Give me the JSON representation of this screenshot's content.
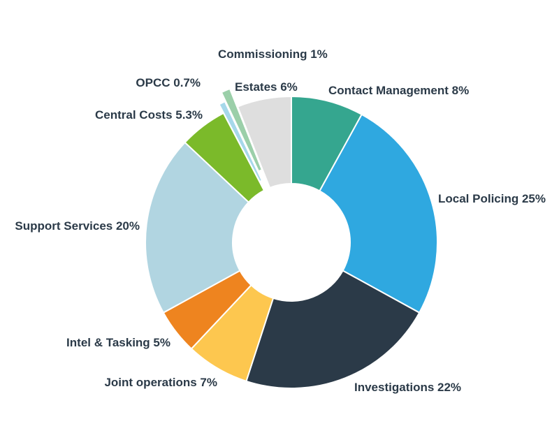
{
  "chart_data": {
    "type": "pie",
    "donut": true,
    "title": "",
    "slices": [
      {
        "label": "Contact Management 8%",
        "value": 8,
        "color": "#35a68f"
      },
      {
        "label": "Local Policing 25%",
        "value": 25,
        "color": "#2fa8e0"
      },
      {
        "label": "Investigations 22%",
        "value": 22,
        "color": "#2b3a48"
      },
      {
        "label": "Joint operations 7%",
        "value": 7,
        "color": "#fdc74f"
      },
      {
        "label": "Intel & Tasking 5%",
        "value": 5,
        "color": "#ee841f"
      },
      {
        "label": "Support Services 20%",
        "value": 20,
        "color": "#b1d5e1"
      },
      {
        "label": "Central Costs 5.3%",
        "value": 5.3,
        "color": "#7bba2a"
      },
      {
        "label": "OPCC 0.7%",
        "value": 0.7,
        "color": "#a6d8ea",
        "exploded": true
      },
      {
        "label": "Commissioning 1%",
        "value": 1,
        "color": "#9bcfa9",
        "exploded": true
      },
      {
        "label": "Estates 6%",
        "value": 6,
        "color": "#dedede"
      }
    ],
    "label_color": "#2b3a48"
  }
}
